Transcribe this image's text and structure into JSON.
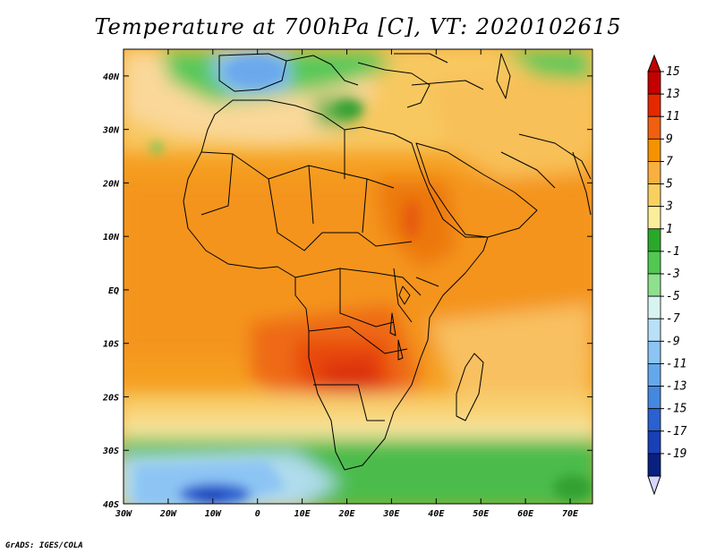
{
  "title": "Temperature at 700hPa [C], VT: 2020102615",
  "credit": "GrADS: IGES/COLA",
  "map": {
    "lon_range": [
      -30,
      75
    ],
    "lat_range": [
      -40,
      45
    ],
    "x_ticks": [
      "30W",
      "20W",
      "10W",
      "0",
      "10E",
      "20E",
      "30E",
      "40E",
      "50E",
      "60E",
      "70E"
    ],
    "y_ticks": [
      "40N",
      "30N",
      "20N",
      "10N",
      "EQ",
      "10S",
      "20S",
      "30S",
      "40S"
    ]
  },
  "colorbar": {
    "labels": [
      "15",
      "13",
      "11",
      "9",
      "7",
      "5",
      "3",
      "1",
      "-1",
      "-3",
      "-5",
      "-7",
      "-9",
      "-11",
      "-13",
      "-15",
      "-17",
      "-19"
    ],
    "colors": [
      "#c40000",
      "#e62800",
      "#f06010",
      "#f59200",
      "#f8b040",
      "#f8d060",
      "#faee9a",
      "#2aa82a",
      "#52c852",
      "#8ee08e",
      "#d8f4f0",
      "#b8e0f8",
      "#8cc4f4",
      "#64a8ec",
      "#4488e0",
      "#2a60d0",
      "#1a40b8",
      "#0a2080"
    ],
    "above_color": "#c40000",
    "below_color": "#d6d6ff"
  }
}
